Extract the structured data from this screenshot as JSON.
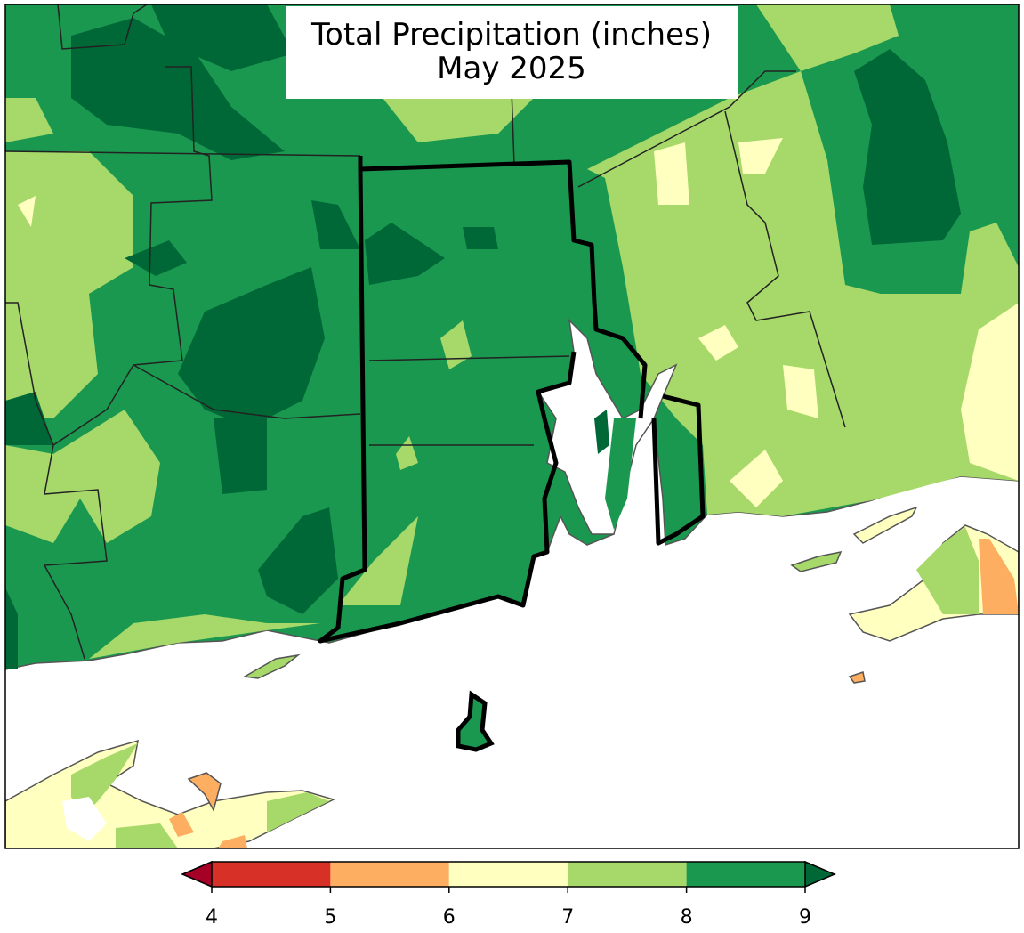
{
  "title": [
    "Total Precipitation (inches)",
    "May 2025"
  ],
  "colorbar": {
    "ticks": [
      4,
      5,
      6,
      7,
      8,
      9
    ],
    "colors": [
      "#d73027",
      "#fdae61",
      "#ffffbf",
      "#a6d96a",
      "#1a9850"
    ],
    "under_color": "#a50026",
    "over_color": "#006837"
  }
}
